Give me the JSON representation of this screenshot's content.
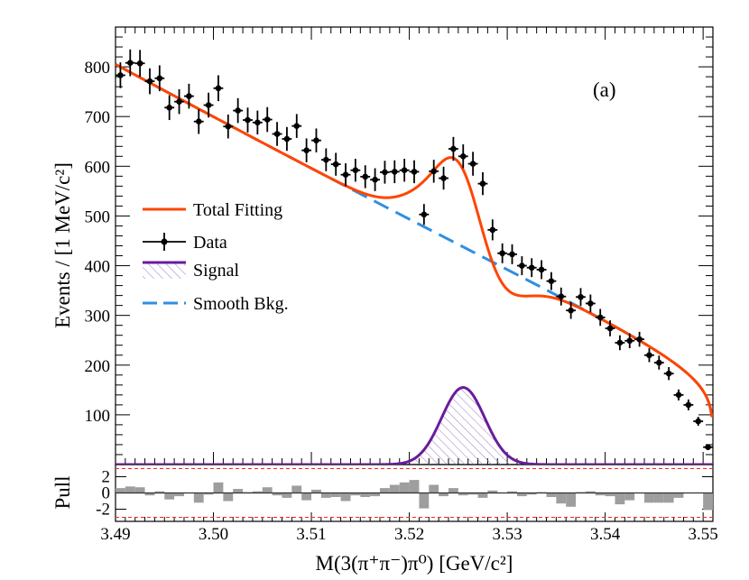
{
  "chart_data": {
    "type": "line",
    "panel_label": "(a)",
    "xlabel": "M(3(π⁺π⁻)π⁰) [GeV/c²]",
    "ylabel": "Events / [1 MeV/c²]",
    "xlim": [
      3.49,
      3.551
    ],
    "ylim": [
      0,
      880
    ],
    "x_ticks": [
      "3.49",
      "3.50",
      "3.51",
      "3.52",
      "3.53",
      "3.54",
      "3.55"
    ],
    "x_tick_values": [
      3.49,
      3.5,
      3.51,
      3.52,
      3.53,
      3.54,
      3.55
    ],
    "y_ticks": [
      "100",
      "200",
      "300",
      "400",
      "500",
      "600",
      "700",
      "800"
    ],
    "y_tick_values": [
      100,
      200,
      300,
      400,
      500,
      600,
      700,
      800
    ],
    "legend": [
      {
        "key": "total",
        "label": "Total Fitting",
        "color": "#ff4500",
        "style": "solid"
      },
      {
        "key": "data",
        "label": "Data",
        "color": "#000000",
        "style": "marker"
      },
      {
        "key": "signal",
        "label": "Signal",
        "color": "#6a1b9a",
        "style": "hatched"
      },
      {
        "key": "bkg",
        "label": "Smooth Bkg.",
        "color": "#2f8fe0",
        "style": "dashed"
      }
    ],
    "data_points": {
      "x": [
        3.4905,
        3.4915,
        3.4925,
        3.4935,
        3.4945,
        3.4955,
        3.4965,
        3.4975,
        3.4985,
        3.4995,
        3.5005,
        3.5015,
        3.5025,
        3.5035,
        3.5045,
        3.5055,
        3.5065,
        3.5075,
        3.5085,
        3.5095,
        3.5105,
        3.5115,
        3.5125,
        3.5135,
        3.5145,
        3.5155,
        3.5165,
        3.5175,
        3.5185,
        3.5195,
        3.5205,
        3.5215,
        3.5225,
        3.5235,
        3.5245,
        3.5255,
        3.5265,
        3.5275,
        3.5285,
        3.5295,
        3.5305,
        3.5315,
        3.5325,
        3.5335,
        3.5345,
        3.5355,
        3.5365,
        3.5375,
        3.5385,
        3.5395,
        3.5405,
        3.5415,
        3.5425,
        3.5435,
        3.5445,
        3.5455,
        3.5465,
        3.5475,
        3.5485,
        3.5495,
        3.5505
      ],
      "y": [
        783,
        808,
        807,
        771,
        777,
        718,
        730,
        741,
        690,
        723,
        757,
        680,
        712,
        693,
        688,
        694,
        665,
        655,
        681,
        632,
        652,
        613,
        604,
        583,
        592,
        579,
        573,
        588,
        589,
        592,
        589,
        503,
        590,
        576,
        635,
        620,
        605,
        565,
        472,
        425,
        423,
        400,
        396,
        392,
        369,
        338,
        310,
        337,
        324,
        296,
        274,
        245,
        249,
        252,
        220,
        205,
        183,
        140,
        120,
        87,
        35
      ],
      "yerr": [
        26,
        27,
        27,
        26,
        26,
        25,
        25,
        25,
        25,
        25,
        26,
        24,
        25,
        25,
        24,
        25,
        24,
        24,
        24,
        24,
        24,
        23,
        23,
        23,
        23,
        23,
        23,
        23,
        23,
        23,
        23,
        21,
        23,
        23,
        24,
        24,
        24,
        23,
        21,
        20,
        20,
        19,
        19,
        19,
        18,
        18,
        17,
        18,
        18,
        17,
        16,
        15,
        15,
        15,
        14,
        14,
        13,
        11,
        11,
        9,
        6
      ]
    },
    "pull_panel": {
      "ylabel": "Pull",
      "ylim": [
        -3.5,
        3.5
      ],
      "y_ticks": [
        "2",
        "0",
        "-2"
      ],
      "y_tick_values": [
        2,
        0,
        -2
      ],
      "reference_lines": [
        3,
        -3
      ],
      "values": [
        0.6,
        0.8,
        0.7,
        -0.3,
        0.2,
        -0.8,
        -0.4,
        0,
        -1.2,
        -0.2,
        1.3,
        -1,
        0.5,
        0.1,
        0.2,
        0.7,
        -0.3,
        -0.6,
        0.9,
        -0.9,
        0.4,
        -0.6,
        -0.5,
        -1,
        -0.3,
        -0.5,
        -0.4,
        0.6,
        1,
        1.3,
        1.6,
        -1.9,
        1,
        -0.4,
        0.6,
        -0.3,
        -0.2,
        -0.6,
        0.3,
        0,
        0.2,
        -0.4,
        -0.2,
        0.1,
        -0.5,
        -1.3,
        -1.7,
        0.1,
        0.2,
        -0.3,
        -0.4,
        -1.4,
        -0.9,
        0,
        -1.2,
        -1.2,
        -1.2,
        -0.6,
        0,
        0,
        -2.1
      ]
    }
  }
}
